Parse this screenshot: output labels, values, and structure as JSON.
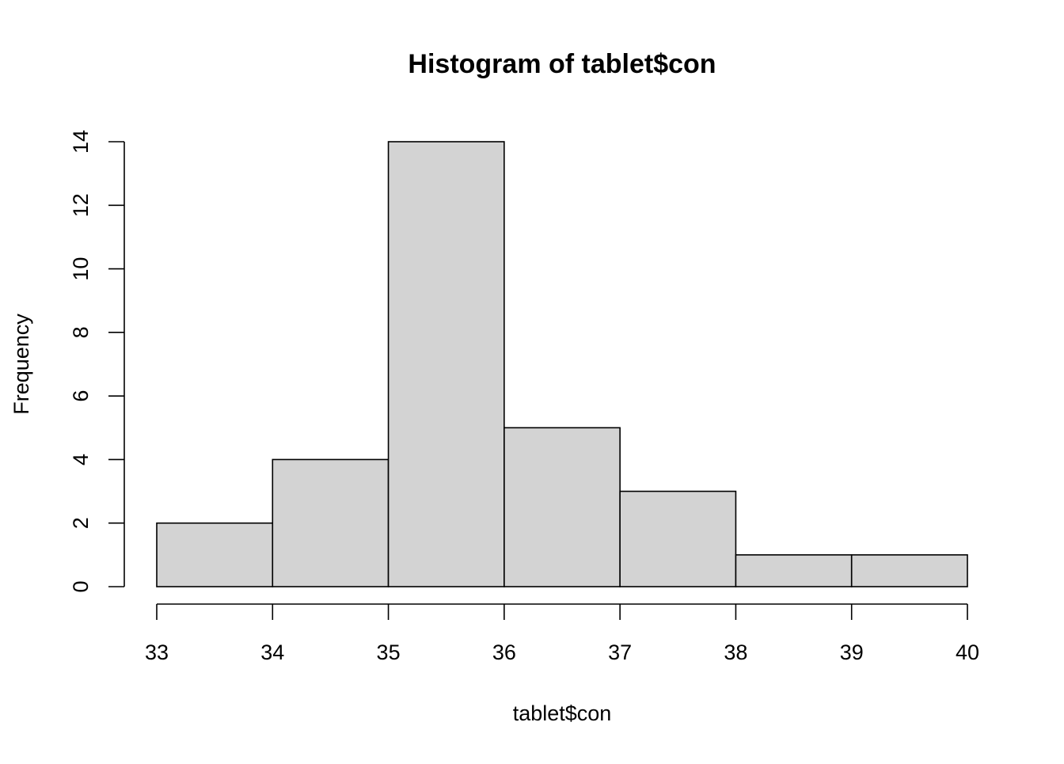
{
  "chart_data": {
    "type": "bar",
    "title": "Histogram of tablet$con",
    "xlabel": "tablet$con",
    "ylabel": "Frequency",
    "bins": [
      {
        "from": 33,
        "to": 34,
        "count": 2
      },
      {
        "from": 34,
        "to": 35,
        "count": 4
      },
      {
        "from": 35,
        "to": 36,
        "count": 14
      },
      {
        "from": 36,
        "to": 37,
        "count": 5
      },
      {
        "from": 37,
        "to": 38,
        "count": 3
      },
      {
        "from": 38,
        "to": 39,
        "count": 1
      },
      {
        "from": 39,
        "to": 40,
        "count": 1
      }
    ],
    "xlim": [
      33,
      40
    ],
    "ylim": [
      0,
      14
    ],
    "x_ticks": [
      "33",
      "34",
      "35",
      "36",
      "37",
      "38",
      "39",
      "40"
    ],
    "y_ticks": [
      "0",
      "2",
      "4",
      "6",
      "8",
      "10",
      "12",
      "14"
    ],
    "bar_color": "#d3d3d3",
    "bar_edge_color": "#000000",
    "grid": false,
    "legend": "none"
  }
}
